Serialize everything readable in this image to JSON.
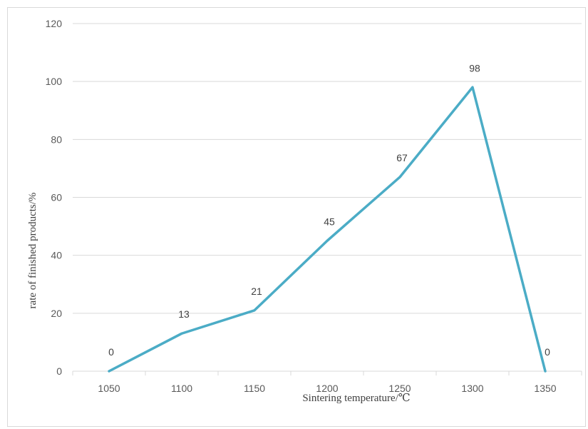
{
  "chart_data": {
    "type": "line",
    "x": [
      1050,
      1100,
      1150,
      1200,
      1250,
      1300,
      1350
    ],
    "categories": [
      "1050",
      "1100",
      "1150",
      "1200",
      "1250",
      "1300",
      "1350"
    ],
    "values": [
      0,
      13,
      21,
      45,
      67,
      98,
      0
    ],
    "data_labels": [
      "0",
      "13",
      "21",
      "45",
      "67",
      "98",
      "0"
    ],
    "xlabel": "Sintering temperature/℃",
    "ylabel": "rate of finished products/%",
    "ylim": [
      0,
      120
    ],
    "yticks": [
      0,
      20,
      40,
      60,
      80,
      100,
      120
    ],
    "ytick_labels": [
      "0",
      "20",
      "40",
      "60",
      "80",
      "100",
      "120"
    ],
    "grid": true,
    "legend": "none",
    "colors": {
      "line": "#4bacc6",
      "grid": "#d9d9d9",
      "tick_text": "#595959"
    }
  }
}
